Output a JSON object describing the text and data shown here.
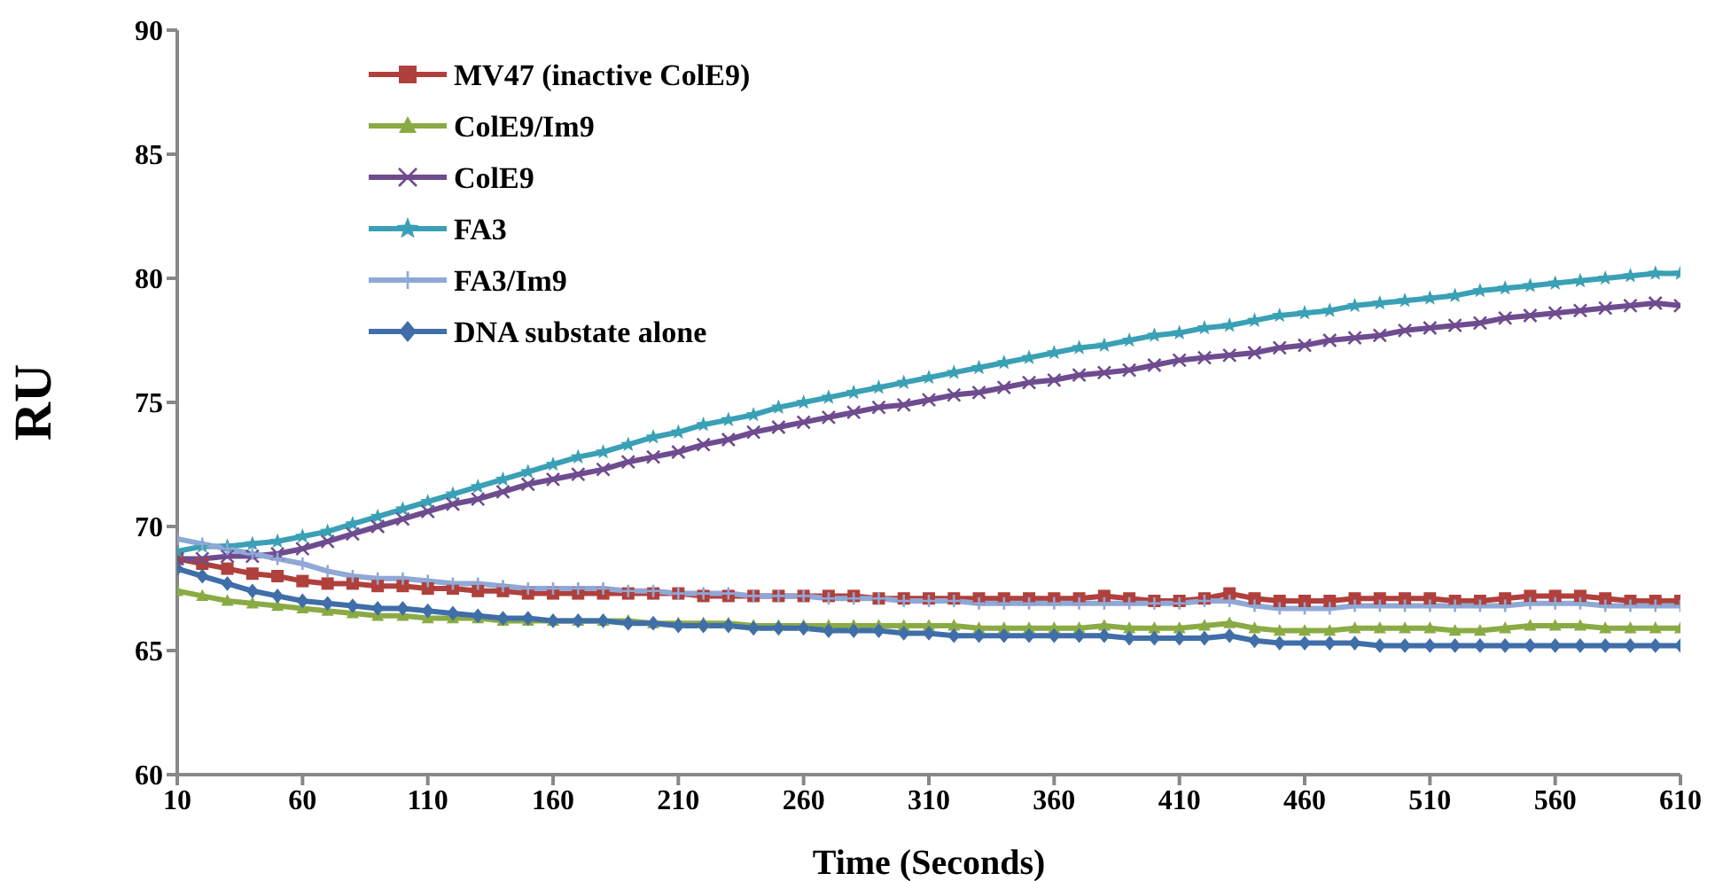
{
  "chart_data": {
    "type": "line",
    "xlabel": "Time (Seconds)",
    "ylabel": "RU",
    "x": [
      10,
      20,
      30,
      40,
      50,
      60,
      70,
      80,
      90,
      100,
      110,
      120,
      130,
      140,
      150,
      160,
      170,
      180,
      190,
      200,
      210,
      220,
      230,
      240,
      250,
      260,
      270,
      280,
      290,
      300,
      310,
      320,
      330,
      340,
      350,
      360,
      370,
      380,
      390,
      400,
      410,
      420,
      430,
      440,
      450,
      460,
      470,
      480,
      490,
      500,
      510,
      520,
      530,
      540,
      550,
      560,
      570,
      580,
      590,
      600,
      610
    ],
    "xlim": [
      10,
      610
    ],
    "xticks": [
      10,
      60,
      110,
      160,
      210,
      260,
      310,
      360,
      410,
      460,
      510,
      560,
      610
    ],
    "ylim": [
      60,
      90
    ],
    "yticks": [
      60,
      65,
      70,
      75,
      80,
      85,
      90
    ],
    "grid": false,
    "legend": "top left",
    "line_style": "solid",
    "series": [
      {
        "name": "MV47 (inactive ColE9)",
        "color": "#b0403c",
        "marker": "square",
        "values": [
          68.7,
          68.5,
          68.3,
          68.1,
          68.0,
          67.8,
          67.7,
          67.7,
          67.6,
          67.6,
          67.5,
          67.5,
          67.4,
          67.4,
          67.3,
          67.3,
          67.3,
          67.3,
          67.3,
          67.3,
          67.3,
          67.2,
          67.2,
          67.2,
          67.2,
          67.2,
          67.2,
          67.2,
          67.1,
          67.1,
          67.1,
          67.1,
          67.1,
          67.1,
          67.1,
          67.1,
          67.1,
          67.2,
          67.1,
          67.0,
          67.0,
          67.1,
          67.3,
          67.1,
          67.0,
          67.0,
          67.0,
          67.1,
          67.1,
          67.1,
          67.1,
          67.0,
          67.0,
          67.1,
          67.2,
          67.2,
          67.2,
          67.1,
          67.0,
          67.0,
          67.0
        ]
      },
      {
        "name": "ColE9/Im9",
        "color": "#8aab44",
        "marker": "triangle",
        "values": [
          67.4,
          67.2,
          67.0,
          66.9,
          66.8,
          66.7,
          66.6,
          66.5,
          66.4,
          66.4,
          66.3,
          66.3,
          66.3,
          66.2,
          66.2,
          66.2,
          66.2,
          66.2,
          66.2,
          66.1,
          66.1,
          66.1,
          66.1,
          66.0,
          66.0,
          66.0,
          66.0,
          66.0,
          66.0,
          66.0,
          66.0,
          66.0,
          65.9,
          65.9,
          65.9,
          65.9,
          65.9,
          66.0,
          65.9,
          65.9,
          65.9,
          66.0,
          66.1,
          65.9,
          65.8,
          65.8,
          65.8,
          65.9,
          65.9,
          65.9,
          65.9,
          65.8,
          65.8,
          65.9,
          66.0,
          66.0,
          66.0,
          65.9,
          65.9,
          65.9,
          65.9
        ]
      },
      {
        "name": "ColE9",
        "color": "#6e4c8f",
        "marker": "cross",
        "values": [
          68.7,
          68.7,
          68.8,
          68.8,
          68.9,
          69.1,
          69.4,
          69.7,
          70.0,
          70.3,
          70.6,
          70.9,
          71.1,
          71.4,
          71.7,
          71.9,
          72.1,
          72.3,
          72.6,
          72.8,
          73.0,
          73.3,
          73.5,
          73.8,
          74.0,
          74.2,
          74.4,
          74.6,
          74.8,
          74.9,
          75.1,
          75.3,
          75.4,
          75.6,
          75.8,
          75.9,
          76.1,
          76.2,
          76.3,
          76.5,
          76.7,
          76.8,
          76.9,
          77.0,
          77.2,
          77.3,
          77.5,
          77.6,
          77.7,
          77.9,
          78.0,
          78.1,
          78.2,
          78.4,
          78.5,
          78.6,
          78.7,
          78.8,
          78.9,
          79.0,
          78.9
        ]
      },
      {
        "name": "FA3",
        "color": "#3aa0b5",
        "marker": "star",
        "values": [
          69.0,
          69.2,
          69.2,
          69.3,
          69.4,
          69.6,
          69.8,
          70.1,
          70.4,
          70.7,
          71.0,
          71.3,
          71.6,
          71.9,
          72.2,
          72.5,
          72.8,
          73.0,
          73.3,
          73.6,
          73.8,
          74.1,
          74.3,
          74.5,
          74.8,
          75.0,
          75.2,
          75.4,
          75.6,
          75.8,
          76.0,
          76.2,
          76.4,
          76.6,
          76.8,
          77.0,
          77.2,
          77.3,
          77.5,
          77.7,
          77.8,
          78.0,
          78.1,
          78.3,
          78.5,
          78.6,
          78.7,
          78.9,
          79.0,
          79.1,
          79.2,
          79.3,
          79.5,
          79.6,
          79.7,
          79.8,
          79.9,
          80.0,
          80.1,
          80.2,
          80.2
        ]
      },
      {
        "name": "FA3/Im9",
        "color": "#8fa8d6",
        "marker": "plus",
        "values": [
          69.5,
          69.3,
          69.1,
          68.9,
          68.7,
          68.5,
          68.2,
          68.0,
          67.9,
          67.9,
          67.8,
          67.7,
          67.7,
          67.6,
          67.5,
          67.5,
          67.5,
          67.5,
          67.4,
          67.4,
          67.3,
          67.3,
          67.3,
          67.2,
          67.2,
          67.2,
          67.1,
          67.1,
          67.1,
          67.0,
          67.0,
          67.0,
          66.9,
          66.9,
          66.9,
          66.9,
          66.9,
          66.9,
          66.9,
          66.9,
          66.9,
          67.0,
          67.0,
          66.8,
          66.7,
          66.7,
          66.7,
          66.8,
          66.8,
          66.8,
          66.8,
          66.8,
          66.8,
          66.8,
          66.9,
          66.9,
          66.9,
          66.8,
          66.8,
          66.8,
          66.8
        ]
      },
      {
        "name": "DNA substate alone",
        "color": "#3f6ea8",
        "marker": "diamond",
        "values": [
          68.3,
          68.0,
          67.7,
          67.4,
          67.2,
          67.0,
          66.9,
          66.8,
          66.7,
          66.7,
          66.6,
          66.5,
          66.4,
          66.3,
          66.3,
          66.2,
          66.2,
          66.2,
          66.1,
          66.1,
          66.0,
          66.0,
          66.0,
          65.9,
          65.9,
          65.9,
          65.8,
          65.8,
          65.8,
          65.7,
          65.7,
          65.6,
          65.6,
          65.6,
          65.6,
          65.6,
          65.6,
          65.6,
          65.5,
          65.5,
          65.5,
          65.5,
          65.6,
          65.4,
          65.3,
          65.3,
          65.3,
          65.3,
          65.2,
          65.2,
          65.2,
          65.2,
          65.2,
          65.2,
          65.2,
          65.2,
          65.2,
          65.2,
          65.2,
          65.2,
          65.2
        ]
      }
    ]
  }
}
